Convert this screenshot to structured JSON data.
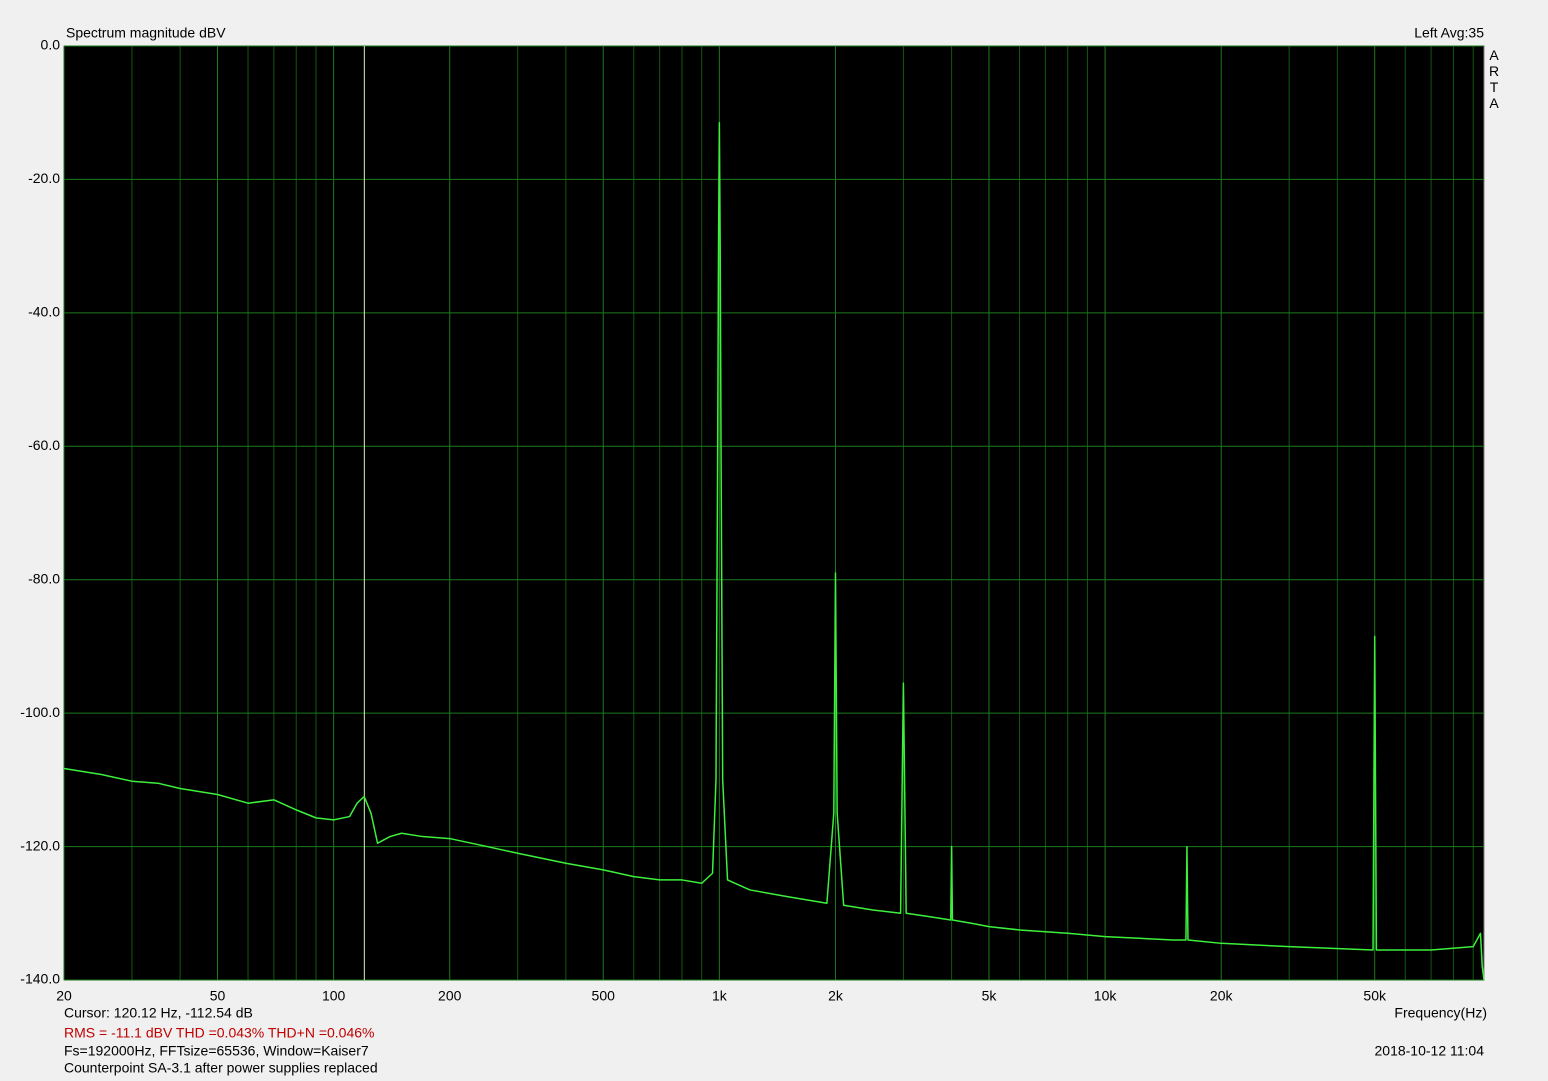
{
  "chart_data": {
    "type": "line",
    "title": "Spectrum magnitude dBV",
    "channel_label": "Left  Avg:35",
    "brand": "ARTA",
    "x_label": "Frequency(Hz)",
    "cursor_text": "Cursor: 120.12 Hz, -112.54 dB",
    "cursor_x": 120.12,
    "measurement_text": "RMS =  -11.1 dBV   THD =0.043%   THD+N =0.046%",
    "settings_text": "Fs=192000Hz, FFTsize=65536, Window=Kaiser7",
    "timestamp": "2018-10-12  11:04",
    "note": "Counterpoint SA-3.1 after power supplies replaced",
    "xscale": "log",
    "xlim": [
      20,
      96000
    ],
    "ylim": [
      -140,
      0
    ],
    "xticks": [
      20,
      50,
      100,
      200,
      500,
      {
        "value": 1000,
        "label": "1k"
      },
      {
        "value": 2000,
        "label": "2k"
      },
      {
        "value": 5000,
        "label": "5k"
      },
      {
        "value": 10000,
        "label": "10k"
      },
      {
        "value": 20000,
        "label": "20k"
      },
      {
        "value": 50000,
        "label": "50k"
      }
    ],
    "xgrid_minor": [
      30,
      40,
      60,
      70,
      80,
      90,
      300,
      400,
      600,
      700,
      800,
      900,
      3000,
      4000,
      6000,
      7000,
      8000,
      9000,
      30000,
      40000,
      60000,
      70000,
      80000,
      90000
    ],
    "yticks": [
      {
        "value": 0,
        "label": "0.0"
      },
      {
        "value": -20,
        "label": "-20.0"
      },
      {
        "value": -40,
        "label": "-40.0"
      },
      {
        "value": -60,
        "label": "-60.0"
      },
      {
        "value": -80,
        "label": "-80.0"
      },
      {
        "value": -100,
        "label": "-100.0"
      },
      {
        "value": -120,
        "label": "-120.0"
      },
      {
        "value": -140,
        "label": "-140.0"
      }
    ],
    "grid": true,
    "series": [
      {
        "color": "#3cf03c",
        "x": [
          20,
          25,
          30,
          35,
          40,
          50,
          60,
          70,
          80,
          90,
          100,
          110,
          115,
          120,
          125,
          130,
          140,
          150,
          170,
          200,
          250,
          300,
          400,
          500,
          600,
          700,
          800,
          900,
          960,
          980,
          990,
          995,
          1000,
          1005,
          1010,
          1020,
          1050,
          1200,
          1500,
          1900,
          1980,
          2000,
          2020,
          2100,
          2500,
          2950,
          3000,
          3050,
          3500,
          3980,
          4000,
          4020,
          4500,
          5000,
          6000,
          8000,
          10000,
          15000,
          16200,
          16300,
          16400,
          20000,
          30000,
          49500,
          50000,
          50500,
          70000,
          90000,
          94000,
          95000,
          96000
        ],
        "values": [
          -108.3,
          -109.2,
          -110.2,
          -110.5,
          -111.3,
          -112.2,
          -113.5,
          -113.0,
          -114.5,
          -115.7,
          -116.0,
          -115.5,
          -113.5,
          -112.5,
          -115,
          -119.5,
          -118.5,
          -118,
          -118.5,
          -118.8,
          -120,
          -121,
          -122.5,
          -123.5,
          -124.5,
          -125,
          -125,
          -125.5,
          -124,
          -110,
          -60,
          -30,
          -11.5,
          -30,
          -60,
          -110,
          -125,
          -126.5,
          -127.5,
          -128.5,
          -115,
          -79,
          -115,
          -128.8,
          -129.5,
          -130,
          -95.5,
          -130,
          -130.5,
          -131,
          -120,
          -131,
          -131.5,
          -132,
          -132.5,
          -133,
          -133.5,
          -134,
          -134,
          -120,
          -134,
          -134.5,
          -135,
          -135.5,
          -88.5,
          -135.5,
          -135.5,
          -135,
          -133,
          -138,
          -140
        ]
      }
    ]
  }
}
